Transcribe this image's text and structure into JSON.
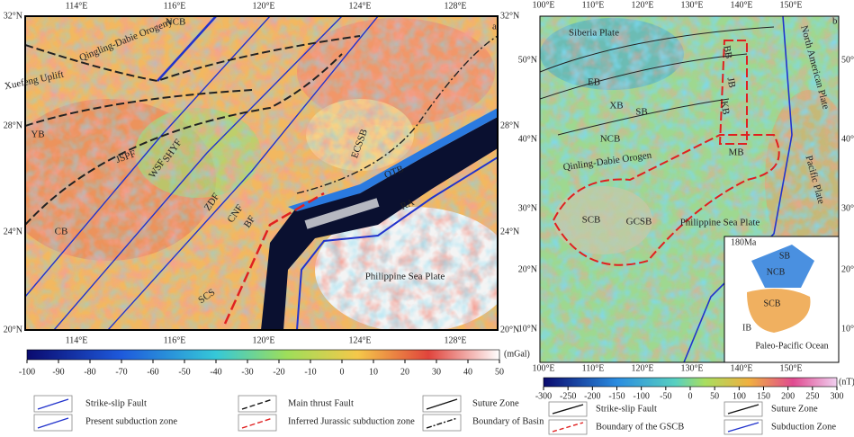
{
  "panel_a": {
    "letter": "a",
    "lon_labels": [
      "114°E",
      "116°E",
      "120°E",
      "124°E",
      "128°E"
    ],
    "lat_labels": [
      "32°N",
      "28°N",
      "24°N",
      "20°N"
    ],
    "features": [
      "NCB",
      "Qingling-Dabie Orogeny",
      "Xuefeng Uplift",
      "YB",
      "JSPF",
      "WSF",
      "SHYF",
      "ZDF",
      "CNF",
      "BF",
      "CB",
      "ECSSB",
      "OTB",
      "RA",
      "Philippine Sea Plate",
      "SCS"
    ],
    "colorbar": {
      "ticks": [
        -100,
        -90,
        -80,
        -70,
        -60,
        -50,
        -40,
        -30,
        -20,
        -10,
        0,
        10,
        20,
        30,
        40,
        50
      ],
      "unit": "(mGal)"
    },
    "legend": [
      "Strike-slip Fault",
      "Main thrust Fault",
      "Suture Zone",
      "Present subduction zone",
      "Inferred Jurassic subduction zone",
      "Boundary of Basin"
    ]
  },
  "panel_b": {
    "letter": "b",
    "lon_labels": [
      "100°E",
      "110°E",
      "120°E",
      "130°E",
      "140°E",
      "150°E"
    ],
    "lat_labels": [
      "50°N",
      "40°N",
      "30°N",
      "20°N",
      "10°N"
    ],
    "features": [
      "Siberia Plate",
      "North American Plate",
      "EB",
      "XB",
      "SB",
      "BB",
      "JB",
      "KB",
      "NCB",
      "Qinling-Dabie Orogen",
      "MB",
      "Pacific Plate",
      "SCB",
      "GCSB",
      "Philippine Sea Plate"
    ],
    "inset": {
      "age": "180Ma",
      "labels": [
        "SB",
        "NCB",
        "SCB",
        "IB",
        "Paleo-Pacific Ocean"
      ]
    },
    "colorbar": {
      "ticks": [
        -300,
        -250,
        -200,
        -150,
        -100,
        -50,
        0,
        50,
        100,
        150,
        200,
        250,
        300
      ],
      "unit": "(nT)"
    },
    "legend": [
      "Strike-slip Fault",
      "Suture Zone",
      "Boundary of the GSCB",
      "Subduction Zone"
    ]
  }
}
